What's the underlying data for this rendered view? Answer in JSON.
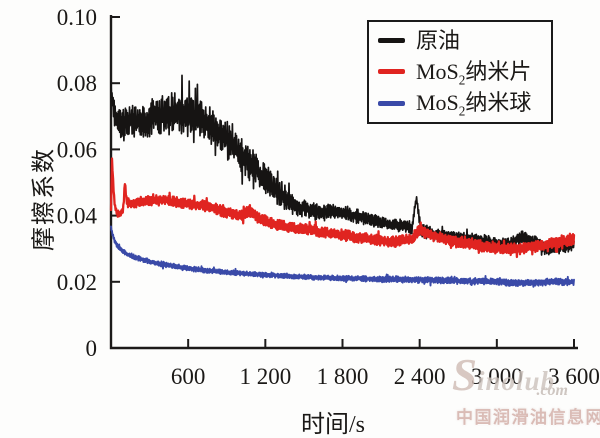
{
  "figure": {
    "background": "#fdfdfc",
    "watermark": {
      "logo_initial": "S",
      "logo_rest": "inolub",
      "domain_text": ".com",
      "site_name": "中国润滑油信息网"
    }
  },
  "chart_data": {
    "type": "line",
    "title": "",
    "xlabel": "时间/s",
    "ylabel": "摩擦系数",
    "xlim": [
      0,
      3600
    ],
    "ylim": [
      0,
      0.1
    ],
    "grid": false,
    "legend_position": "top-right",
    "xticks": [
      600,
      1200,
      1800,
      2400,
      3000,
      3600
    ],
    "xtick_labels": [
      "600",
      "1 200",
      "1 800",
      "2 400",
      "3 000",
      "3 600"
    ],
    "yticks": [
      0,
      0.02,
      0.04,
      0.06,
      0.08,
      0.1
    ],
    "ytick_labels": [
      "0",
      "0.02",
      "0.04",
      "0.06",
      "0.08",
      "0.10"
    ],
    "axis_color": "#1c1a19",
    "series": [
      {
        "name": "原油",
        "slug": "crude-oil",
        "label_pre": "原油",
        "label_sub": "",
        "label_post": "",
        "color": "#161413",
        "line_width": 1.7,
        "points": [
          [
            0,
            0.08,
            0.001
          ],
          [
            15,
            0.073,
            0.003
          ],
          [
            40,
            0.069,
            0.004
          ],
          [
            80,
            0.068,
            0.0045
          ],
          [
            150,
            0.0685,
            0.005
          ],
          [
            250,
            0.0685,
            0.005
          ],
          [
            350,
            0.07,
            0.0055
          ],
          [
            450,
            0.0705,
            0.006
          ],
          [
            550,
            0.071,
            0.006
          ],
          [
            650,
            0.07,
            0.006
          ],
          [
            750,
            0.068,
            0.006
          ],
          [
            850,
            0.065,
            0.0055
          ],
          [
            950,
            0.061,
            0.0055
          ],
          [
            1050,
            0.057,
            0.005
          ],
          [
            1150,
            0.053,
            0.0045
          ],
          [
            1250,
            0.049,
            0.004
          ],
          [
            1350,
            0.0455,
            0.0035
          ],
          [
            1450,
            0.043,
            0.003
          ],
          [
            1550,
            0.0415,
            0.0025
          ],
          [
            1650,
            0.041,
            0.0022
          ],
          [
            1750,
            0.0412,
            0.002
          ],
          [
            1850,
            0.0405,
            0.002
          ],
          [
            1950,
            0.0395,
            0.002
          ],
          [
            2050,
            0.0385,
            0.0018
          ],
          [
            2150,
            0.0375,
            0.0018
          ],
          [
            2250,
            0.037,
            0.0018
          ],
          [
            2340,
            0.0365,
            0.002
          ],
          [
            2375,
            0.0455,
            0.0005
          ],
          [
            2410,
            0.0355,
            0.002
          ],
          [
            2500,
            0.0345,
            0.0018
          ],
          [
            2600,
            0.034,
            0.0016
          ],
          [
            2700,
            0.0335,
            0.0016
          ],
          [
            2800,
            0.033,
            0.0016
          ],
          [
            2900,
            0.0325,
            0.0016
          ],
          [
            3000,
            0.0315,
            0.0016
          ],
          [
            3100,
            0.0315,
            0.0018
          ],
          [
            3200,
            0.0335,
            0.002
          ],
          [
            3300,
            0.032,
            0.0018
          ],
          [
            3400,
            0.0295,
            0.0016
          ],
          [
            3500,
            0.0305,
            0.002
          ],
          [
            3600,
            0.0315,
            0.002
          ]
        ]
      },
      {
        "name": "MoS2纳米片",
        "slug": "mos2-nanosheet",
        "label_pre": "MoS",
        "label_sub": "2",
        "label_post": "纳米片",
        "color": "#e02420",
        "line_width": 2.3,
        "points": [
          [
            0,
            0.0415,
            0.0008
          ],
          [
            8,
            0.057,
            0.0005
          ],
          [
            18,
            0.049,
            0.0008
          ],
          [
            30,
            0.0425,
            0.001
          ],
          [
            50,
            0.0405,
            0.001
          ],
          [
            75,
            0.0405,
            0.001
          ],
          [
            95,
            0.042,
            0.001
          ],
          [
            108,
            0.05,
            0.0006
          ],
          [
            122,
            0.0445,
            0.0012
          ],
          [
            160,
            0.0435,
            0.0014
          ],
          [
            220,
            0.044,
            0.0014
          ],
          [
            300,
            0.0445,
            0.0015
          ],
          [
            380,
            0.045,
            0.0015
          ],
          [
            460,
            0.0445,
            0.0015
          ],
          [
            540,
            0.044,
            0.0015
          ],
          [
            620,
            0.0435,
            0.0015
          ],
          [
            700,
            0.043,
            0.0015
          ],
          [
            780,
            0.0425,
            0.0016
          ],
          [
            860,
            0.0415,
            0.0016
          ],
          [
            940,
            0.0405,
            0.0016
          ],
          [
            1020,
            0.04,
            0.0016
          ],
          [
            1080,
            0.0415,
            0.0016
          ],
          [
            1140,
            0.0395,
            0.0016
          ],
          [
            1220,
            0.038,
            0.0016
          ],
          [
            1300,
            0.0372,
            0.0016
          ],
          [
            1380,
            0.0365,
            0.0016
          ],
          [
            1460,
            0.036,
            0.0016
          ],
          [
            1540,
            0.0358,
            0.0016
          ],
          [
            1620,
            0.0352,
            0.0016
          ],
          [
            1700,
            0.0348,
            0.0016
          ],
          [
            1780,
            0.0342,
            0.0016
          ],
          [
            1860,
            0.0338,
            0.0016
          ],
          [
            1940,
            0.0334,
            0.0016
          ],
          [
            2020,
            0.033,
            0.0016
          ],
          [
            2100,
            0.0325,
            0.0016
          ],
          [
            2180,
            0.032,
            0.0016
          ],
          [
            2260,
            0.0325,
            0.0016
          ],
          [
            2340,
            0.033,
            0.0016
          ],
          [
            2400,
            0.0358,
            0.0016
          ],
          [
            2460,
            0.0345,
            0.0016
          ],
          [
            2540,
            0.0335,
            0.0016
          ],
          [
            2620,
            0.0328,
            0.0016
          ],
          [
            2700,
            0.032,
            0.0016
          ],
          [
            2780,
            0.0315,
            0.0016
          ],
          [
            2860,
            0.031,
            0.0016
          ],
          [
            2940,
            0.0305,
            0.0016
          ],
          [
            3020,
            0.03,
            0.0016
          ],
          [
            3100,
            0.0298,
            0.0016
          ],
          [
            3180,
            0.03,
            0.0016
          ],
          [
            3260,
            0.0305,
            0.0016
          ],
          [
            3340,
            0.031,
            0.0016
          ],
          [
            3420,
            0.0315,
            0.0016
          ],
          [
            3500,
            0.032,
            0.0018
          ],
          [
            3600,
            0.033,
            0.0018
          ]
        ]
      },
      {
        "name": "MoS2纳米球",
        "slug": "mos2-nanosphere",
        "label_pre": "MoS",
        "label_sub": "2",
        "label_post": "纳米球",
        "color": "#3a4aa8",
        "line_width": 1.9,
        "points": [
          [
            0,
            0.0365,
            0.0006
          ],
          [
            25,
            0.0325,
            0.0007
          ],
          [
            55,
            0.0305,
            0.0007
          ],
          [
            90,
            0.0292,
            0.0007
          ],
          [
            130,
            0.0283,
            0.0007
          ],
          [
            180,
            0.0275,
            0.0007
          ],
          [
            240,
            0.0268,
            0.0007
          ],
          [
            310,
            0.026,
            0.0007
          ],
          [
            390,
            0.0253,
            0.0007
          ],
          [
            470,
            0.0248,
            0.0007
          ],
          [
            560,
            0.0243,
            0.0007
          ],
          [
            660,
            0.0238,
            0.0007
          ],
          [
            760,
            0.0233,
            0.0007
          ],
          [
            880,
            0.0229,
            0.0007
          ],
          [
            1000,
            0.0226,
            0.0007
          ],
          [
            1150,
            0.0222,
            0.0007
          ],
          [
            1300,
            0.0219,
            0.0007
          ],
          [
            1450,
            0.0216,
            0.0007
          ],
          [
            1600,
            0.0213,
            0.0007
          ],
          [
            1800,
            0.0211,
            0.0008
          ],
          [
            2000,
            0.0209,
            0.0008
          ],
          [
            2200,
            0.0207,
            0.0009
          ],
          [
            2400,
            0.0206,
            0.0009
          ],
          [
            2600,
            0.0204,
            0.0009
          ],
          [
            2800,
            0.0202,
            0.0009
          ],
          [
            3000,
            0.0201,
            0.0009
          ],
          [
            3150,
            0.0196,
            0.001
          ],
          [
            3300,
            0.0198,
            0.001
          ],
          [
            3450,
            0.02,
            0.001
          ],
          [
            3600,
            0.0199,
            0.0009
          ]
        ]
      }
    ]
  }
}
